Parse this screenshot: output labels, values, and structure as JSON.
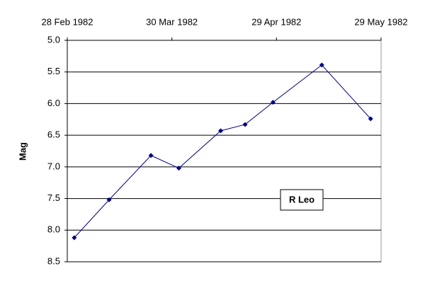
{
  "chart_data": {
    "type": "line",
    "y_label": "Mag",
    "annotation": "R Leo",
    "color": "#000080",
    "x": [
      "1982-03-02",
      "1982-03-12",
      "1982-03-24",
      "1982-04-01",
      "1982-04-13",
      "1982-04-20",
      "1982-04-28",
      "1982-05-12",
      "1982-05-26"
    ],
    "values": [
      8.12,
      7.52,
      6.82,
      7.02,
      6.43,
      6.33,
      5.98,
      5.39,
      6.24
    ],
    "xlim": [
      "1982-02-28",
      "1982-05-29"
    ],
    "xticks": [
      {
        "value": "1982-02-28",
        "label": "28 Feb 1982"
      },
      {
        "value": "1982-03-30",
        "label": "30 Mar 1982"
      },
      {
        "value": "1982-04-29",
        "label": "29 Apr 1982"
      },
      {
        "value": "1982-05-29",
        "label": "29 May 1982"
      }
    ],
    "ylim": [
      5.0,
      8.5
    ],
    "y_inverted": true,
    "yticks": [
      {
        "value": 5.0,
        "label": "5.0"
      },
      {
        "value": 5.5,
        "label": "5.5"
      },
      {
        "value": 6.0,
        "label": "6.0"
      },
      {
        "value": 6.5,
        "label": "6.5"
      },
      {
        "value": 7.0,
        "label": "7.0"
      },
      {
        "value": 7.5,
        "label": "7.5"
      },
      {
        "value": 8.0,
        "label": "8.0"
      },
      {
        "value": 8.5,
        "label": "8.5"
      }
    ],
    "grid": true
  }
}
